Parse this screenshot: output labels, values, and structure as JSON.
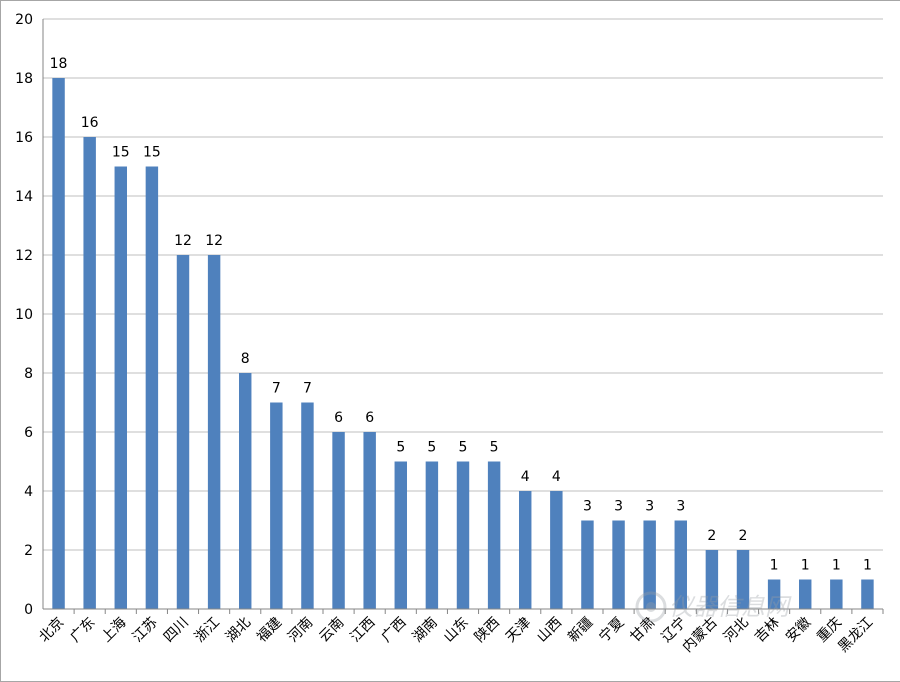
{
  "chart_data": {
    "type": "bar",
    "categories": [
      "北京",
      "广东",
      "上海",
      "江苏",
      "四川",
      "浙江",
      "湖北",
      "福建",
      "河南",
      "云南",
      "江西",
      "广西",
      "湖南",
      "山东",
      "陕西",
      "天津",
      "山西",
      "新疆",
      "宁夏",
      "甘肃",
      "辽宁",
      "内蒙古",
      "河北",
      "吉林",
      "安徽",
      "重庆",
      "黑龙江"
    ],
    "values": [
      18,
      16,
      15,
      15,
      12,
      12,
      8,
      7,
      7,
      6,
      6,
      5,
      5,
      5,
      5,
      4,
      4,
      3,
      3,
      3,
      3,
      2,
      2,
      1,
      1,
      1,
      1
    ],
    "title": "",
    "xlabel": "",
    "ylabel": "",
    "ylim": [
      0,
      20
    ],
    "yticks": [
      0,
      2,
      4,
      6,
      8,
      10,
      12,
      14,
      16,
      18,
      20
    ],
    "grid": true,
    "legend": "none",
    "data_labels": true,
    "bar_color": "#4f81bd"
  },
  "watermark": "仪器信息网"
}
